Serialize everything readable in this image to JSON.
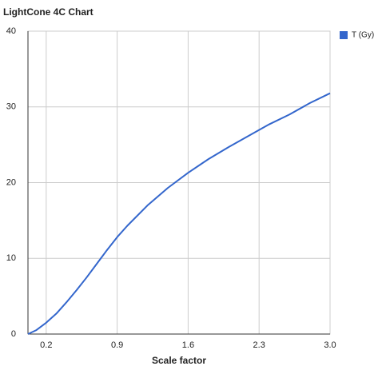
{
  "chart_data": {
    "type": "line",
    "title": "LightCone 4C Chart",
    "x_label": "Scale factor",
    "x": [
      0.02,
      0.1,
      0.2,
      0.3,
      0.4,
      0.5,
      0.6,
      0.7,
      0.8,
      0.9,
      1.0,
      1.2,
      1.4,
      1.6,
      1.8,
      2.0,
      2.2,
      2.4,
      2.6,
      2.8,
      3.0
    ],
    "series": [
      {
        "name": "T (Gy)",
        "color": "#3366cc",
        "values": [
          0,
          0.5,
          1.5,
          2.7,
          4.2,
          5.8,
          7.5,
          9.3,
          11.1,
          12.8,
          14.3,
          17.0,
          19.3,
          21.3,
          23.1,
          24.7,
          26.2,
          27.7,
          29.0,
          30.5,
          31.8
        ]
      }
    ],
    "xlim": [
      0.02,
      3.0
    ],
    "xticks": [
      0.2,
      0.9,
      1.6,
      2.3,
      {
        "value": 3.0,
        "label": "3.0"
      }
    ],
    "ylim": [
      0,
      40
    ],
    "yticks": [
      0,
      10,
      20,
      30,
      40
    ],
    "grid": true,
    "legend": "top-right"
  }
}
